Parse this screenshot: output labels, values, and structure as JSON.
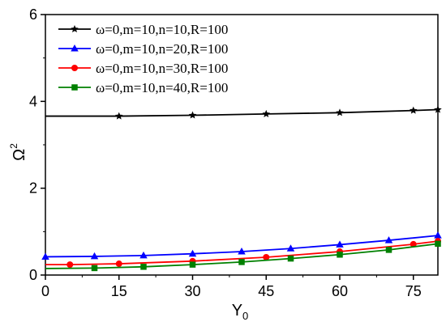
{
  "chart_data": {
    "type": "line",
    "xlabel": "Y",
    "xlabel_sub": "0",
    "ylabel": "Ω",
    "ylabel_sup": "2",
    "xlim": [
      0,
      80
    ],
    "ylim": [
      0,
      6
    ],
    "xticks": [
      0,
      15,
      30,
      45,
      60,
      75
    ],
    "xtick_labels": [
      "0",
      "15",
      "30",
      "45",
      "60",
      "75"
    ],
    "yticks": [
      0,
      2,
      4,
      6
    ],
    "ytick_labels": [
      "0",
      "2",
      "4",
      "6"
    ],
    "grid": false,
    "legend_position": "top-left",
    "series": [
      {
        "name": "ω=0,m=10,n=10,R=100",
        "color": "#000000",
        "marker": "star",
        "x": [
          0,
          15,
          30,
          45,
          60,
          75,
          80
        ],
        "y": [
          3.66,
          3.66,
          3.68,
          3.71,
          3.74,
          3.79,
          3.81
        ],
        "marker_x": [
          15,
          30,
          45,
          60,
          75,
          80
        ]
      },
      {
        "name": "ω=0,m=10,n=20,R=100",
        "color": "#0000ff",
        "marker": "triangle",
        "x": [
          0,
          10,
          20,
          30,
          40,
          50,
          60,
          70,
          80
        ],
        "y": [
          0.42,
          0.43,
          0.45,
          0.49,
          0.54,
          0.61,
          0.7,
          0.8,
          0.91
        ],
        "marker_x": [
          0,
          10,
          20,
          30,
          40,
          50,
          60,
          70,
          80
        ]
      },
      {
        "name": "ω=0,m=10,n=30,R=100",
        "color": "#ff0000",
        "marker": "circle",
        "x": [
          0,
          5,
          15,
          30,
          45,
          60,
          75,
          80
        ],
        "y": [
          0.24,
          0.24,
          0.26,
          0.32,
          0.41,
          0.54,
          0.71,
          0.78
        ],
        "marker_x": [
          5,
          15,
          30,
          45,
          60,
          75,
          80
        ]
      },
      {
        "name": "ω=0,m=10,n=40,R=100",
        "color": "#008000",
        "marker": "square",
        "x": [
          0,
          10,
          20,
          30,
          40,
          50,
          60,
          70,
          80
        ],
        "y": [
          0.15,
          0.16,
          0.19,
          0.24,
          0.3,
          0.38,
          0.47,
          0.58,
          0.72
        ],
        "marker_x": [
          10,
          20,
          30,
          40,
          50,
          60,
          70,
          80
        ]
      }
    ]
  }
}
